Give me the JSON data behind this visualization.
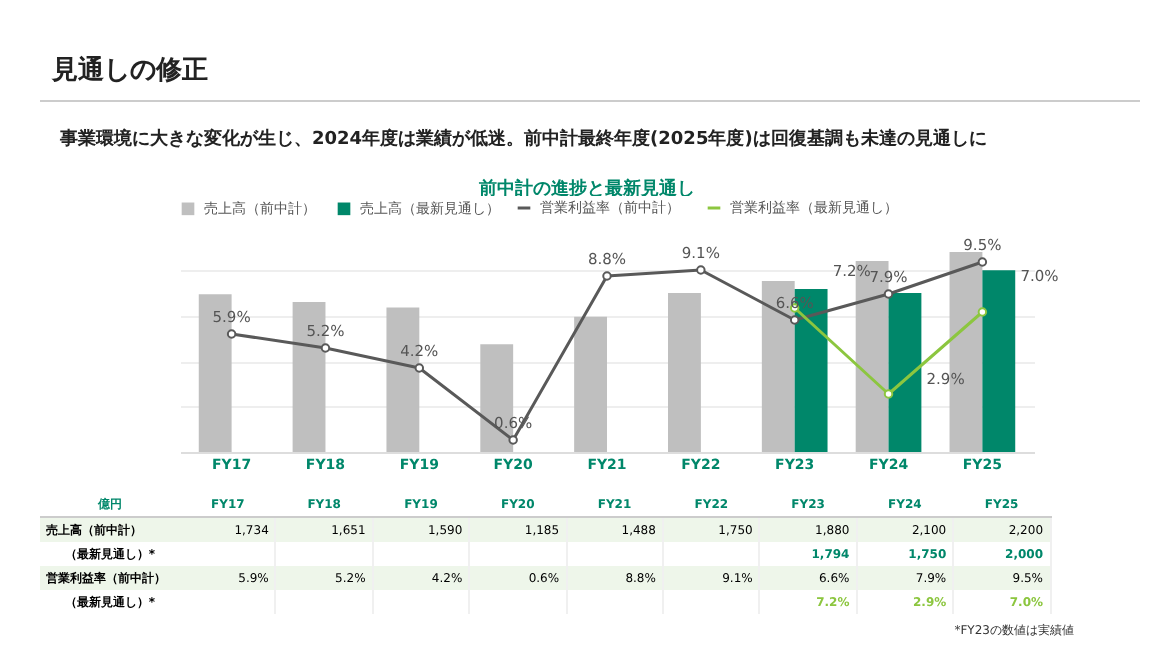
{
  "chart_data": {
    "type": "bar",
    "title": "見通しの修正",
    "subtitle": "事業環境に大きな変化が生じ、2024年度は業績が低迷。前中計最終年度(2025年度)は回復基調も未達の見通しに",
    "annotations": [
      "前中計の進捗と最新見通し",
      "億円",
      "売上高（前中計）",
      "（最新見通し）*",
      "営業利益率（前中計）",
      "（最新見通し）*",
      "*FY23の数値は実績値"
    ],
    "categories": [
      "FY17",
      "FY18",
      "FY19",
      "FY20",
      "FY21",
      "FY22",
      "FY23",
      "FY24",
      "FY25"
    ],
    "series": [
      {
        "name": "売上高（前中計）",
        "color": "#bfbfbf",
        "values": [
          1734,
          1651,
          1590,
          1185,
          1488,
          1750,
          1880,
          2100,
          2200
        ],
        "value_labels": [
          "1,734",
          "1,651",
          "1,590",
          "1,185",
          "1,488",
          "1,750",
          "1,880",
          "2,100",
          "2,200"
        ]
      },
      {
        "name": "売上高（最新見通し）",
        "color": "#00876a",
        "values": [
          null,
          null,
          null,
          null,
          null,
          null,
          1794,
          1750,
          2000
        ],
        "value_labels": [
          null,
          null,
          null,
          null,
          null,
          null,
          "1,794",
          "1,750",
          "2,000"
        ]
      },
      {
        "name": "営業利益率（前中計）",
        "type": "line",
        "axis": "y2",
        "color": "#595959",
        "values": [
          5.9,
          5.2,
          4.2,
          0.6,
          8.8,
          9.1,
          6.6,
          7.9,
          9.5
        ],
        "value_labels": [
          "5.9%",
          "5.2%",
          "4.2%",
          "0.6%",
          "8.8%",
          "9.1%",
          "6.6%",
          "7.9%",
          "9.5%"
        ]
      },
      {
        "name": "営業利益率（最新見通し）",
        "type": "line",
        "axis": "y2",
        "color": "#8cc63f",
        "values": [
          null,
          null,
          null,
          null,
          null,
          null,
          7.2,
          2.9,
          7.0
        ],
        "value_labels": [
          null,
          null,
          null,
          null,
          null,
          null,
          "7.2%",
          "2.9%",
          "7.0%"
        ]
      }
    ],
    "legend": "top",
    "marker": "circle",
    "grid": "y"
  }
}
